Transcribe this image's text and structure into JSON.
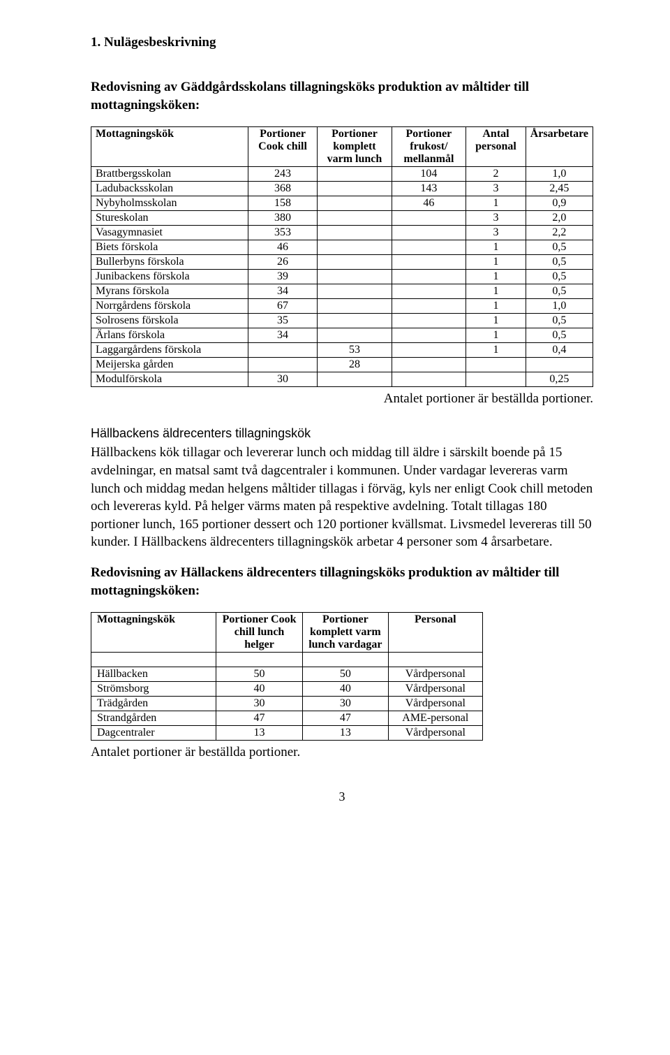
{
  "section_heading": "1. Nulägesbeskrivning",
  "intro_heading": "Redovisning av Gäddgårdsskolans tillagningsköks produktion av måltider till mottagningsköken:",
  "table1": {
    "headers": [
      "Mottagningskök",
      "Portioner Cook chill",
      "Portioner komplett varm lunch",
      "Portioner frukost/ mellanmål",
      "Antal personal",
      "Årsarbetare"
    ],
    "rows": [
      [
        "Brattbergsskolan",
        "243",
        "",
        "104",
        "2",
        "1,0"
      ],
      [
        "Ladubacksskolan",
        "368",
        "",
        "143",
        "3",
        "2,45"
      ],
      [
        "Nybyholmsskolan",
        "158",
        "",
        "46",
        "1",
        "0,9"
      ],
      [
        "Stureskolan",
        "380",
        "",
        "",
        "3",
        "2,0"
      ],
      [
        "Vasagymnasiet",
        "353",
        "",
        "",
        "3",
        "2,2"
      ],
      [
        "Biets förskola",
        "46",
        "",
        "",
        "1",
        "0,5"
      ],
      [
        "Bullerbyns förskola",
        "26",
        "",
        "",
        "1",
        "0,5"
      ],
      [
        "Junibackens förskola",
        "39",
        "",
        "",
        "1",
        "0,5"
      ],
      [
        "Myrans förskola",
        "34",
        "",
        "",
        "1",
        "0,5"
      ],
      [
        "Norrgårdens förskola",
        "67",
        "",
        "",
        "1",
        "1,0"
      ],
      [
        "Solrosens förskola",
        "35",
        "",
        "",
        "1",
        "0,5"
      ],
      [
        "Ärlans förskola",
        "34",
        "",
        "",
        "1",
        "0,5"
      ],
      [
        "Laggargårdens förskola",
        "",
        "53",
        "",
        "1",
        "0,4"
      ],
      [
        "Meijerska gården",
        "",
        "28",
        "",
        "",
        ""
      ],
      [
        "Modulförskola",
        "30",
        "",
        "",
        "",
        "0,25"
      ]
    ],
    "caption": "Antalet portioner är beställda portioner."
  },
  "hallbacken_heading": "Hällbackens äldrecenters tillagningskök",
  "hallbacken_body": "Hällbackens kök tillagar och levererar lunch och middag till äldre i särskilt boende på 15 avdelningar, en matsal samt två dagcentraler i kommunen. Under vardagar levereras varm lunch och middag medan helgens måltider tillagas i förväg, kyls ner enligt Cook chill metoden och levereras kyld. På helger värms maten på respektive avdelning. Totalt tillagas 180 portioner lunch, 165 portioner dessert och 120 portioner kvällsmat. Livsmedel levereras till 50 kunder. I Hällbackens äldrecenters tillagningskök arbetar 4 personer som 4 årsarbetare.",
  "second_heading": "Redovisning av Hällackens äldrecenters tillagningsköks produktion av måltider till mottagningsköken:",
  "table2": {
    "headers": [
      "Mottagningskök",
      "Portioner Cook chill lunch helger",
      "Portioner komplett varm lunch vardagar",
      "Personal"
    ],
    "rows": [
      [
        "Hällbacken",
        "50",
        "50",
        "Vårdpersonal"
      ],
      [
        "Strömsborg",
        "40",
        "40",
        "Vårdpersonal"
      ],
      [
        "Trädgården",
        "30",
        "30",
        "Vårdpersonal"
      ],
      [
        "Strandgården",
        "47",
        "47",
        "AME-personal"
      ],
      [
        "Dagcentraler",
        "13",
        "13",
        "Vårdpersonal"
      ]
    ],
    "caption": "Antalet portioner är beställda portioner."
  },
  "page_number": "3"
}
